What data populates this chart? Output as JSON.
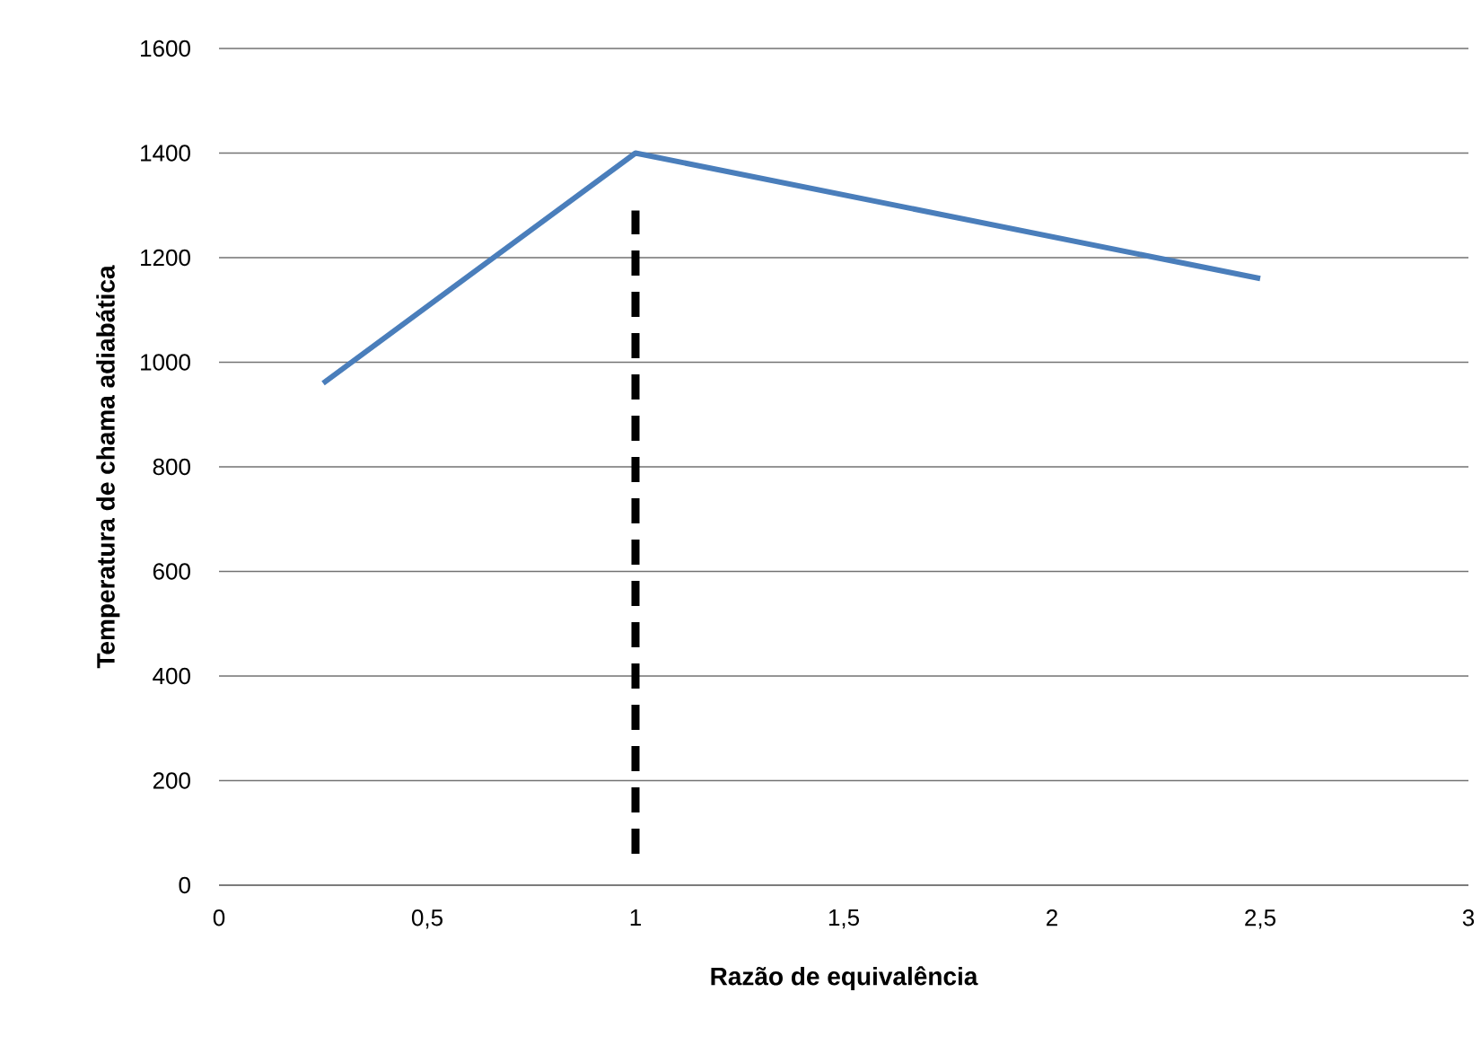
{
  "chart_data": {
    "type": "line",
    "xlabel": "Razão de equivalência",
    "ylabel": "Temperatura de chama adiabática",
    "xlim": [
      0,
      3
    ],
    "ylim": [
      0,
      1600
    ],
    "xticks": [
      0,
      {
        "value": 0.5,
        "label": "0,5"
      },
      1,
      {
        "value": 1.5,
        "label": "1,5"
      },
      2,
      {
        "value": 2.5,
        "label": "2,5"
      },
      3
    ],
    "yticks": [
      0,
      200,
      400,
      600,
      800,
      1000,
      1200,
      1400,
      1600
    ],
    "grid": "y",
    "series": [
      {
        "color": "#4a7ebb",
        "x": [
          0.25,
          1,
          2.5
        ],
        "values": [
          960,
          1400,
          1160
        ],
        "line_style": "solid"
      },
      {
        "color": "#000000",
        "x": [
          1,
          1
        ],
        "values": [
          60,
          1290
        ],
        "line_style": "dashed"
      }
    ]
  }
}
